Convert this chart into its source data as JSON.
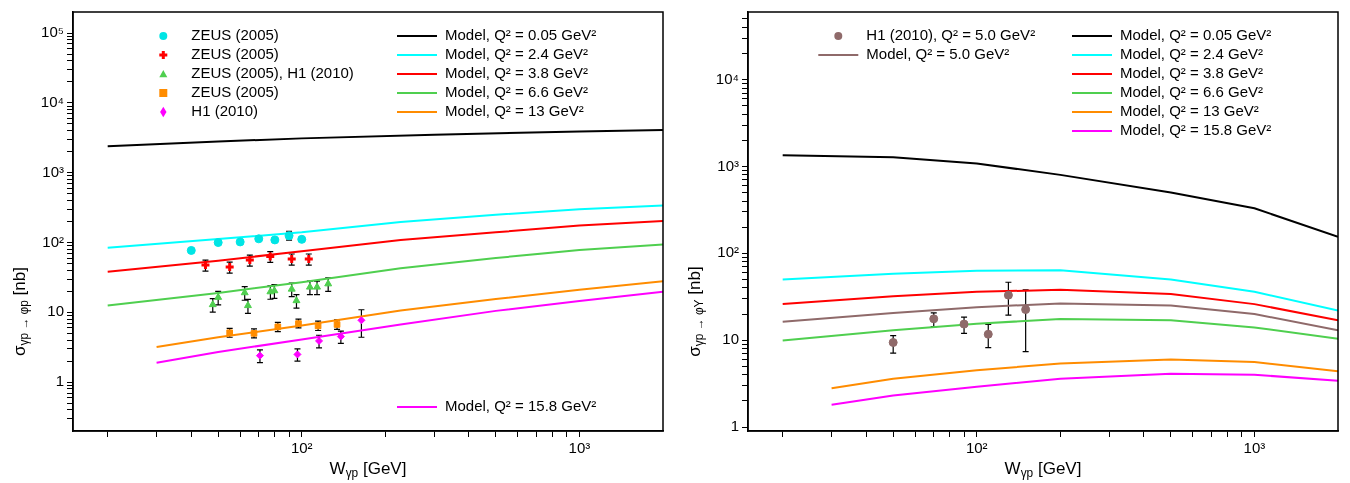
{
  "chart_data": [
    {
      "type": "line",
      "xlabel": "W$_{γp}$ [GeV]",
      "ylabel": "σ$_{γp → φp}$ [nb]",
      "log": "xy",
      "grid": false,
      "legend": "top",
      "xlim": [
        15,
        2000
      ],
      "ylim": [
        0.2,
        200000
      ],
      "xticks": [
        {
          "value": 20,
          "label": null
        },
        {
          "value": 30,
          "label": null
        },
        {
          "value": 40,
          "label": null
        },
        {
          "value": 50,
          "label": null
        },
        {
          "value": 60,
          "label": null
        },
        {
          "value": 70,
          "label": null
        },
        {
          "value": 80,
          "label": null
        },
        {
          "value": 90,
          "label": null
        },
        {
          "value": 100,
          "label": "10²"
        },
        {
          "value": 200,
          "label": null
        },
        {
          "value": 300,
          "label": null
        },
        {
          "value": 400,
          "label": null
        },
        {
          "value": 500,
          "label": null
        },
        {
          "value": 600,
          "label": null
        },
        {
          "value": 700,
          "label": null
        },
        {
          "value": 800,
          "label": null
        },
        {
          "value": 900,
          "label": null
        },
        {
          "value": 1000,
          "label": "10³"
        }
      ],
      "yticks": [
        {
          "value": 0.3,
          "label": null
        },
        {
          "value": 0.4,
          "label": null
        },
        {
          "value": 0.5,
          "label": null
        },
        {
          "value": 0.6,
          "label": null
        },
        {
          "value": 0.7,
          "label": null
        },
        {
          "value": 0.8,
          "label": null
        },
        {
          "value": 0.9,
          "label": null
        },
        {
          "value": 1,
          "label": "1"
        },
        {
          "value": 2,
          "label": null
        },
        {
          "value": 3,
          "label": null
        },
        {
          "value": 4,
          "label": null
        },
        {
          "value": 5,
          "label": null
        },
        {
          "value": 6,
          "label": null
        },
        {
          "value": 7,
          "label": null
        },
        {
          "value": 8,
          "label": null
        },
        {
          "value": 9,
          "label": null
        },
        {
          "value": 10,
          "label": "10"
        },
        {
          "value": 20,
          "label": null
        },
        {
          "value": 30,
          "label": null
        },
        {
          "value": 40,
          "label": null
        },
        {
          "value": 50,
          "label": null
        },
        {
          "value": 60,
          "label": null
        },
        {
          "value": 70,
          "label": null
        },
        {
          "value": 80,
          "label": null
        },
        {
          "value": 90,
          "label": null
        },
        {
          "value": 100,
          "label": "10²"
        },
        {
          "value": 200,
          "label": null
        },
        {
          "value": 300,
          "label": null
        },
        {
          "value": 400,
          "label": null
        },
        {
          "value": 500,
          "label": null
        },
        {
          "value": 600,
          "label": null
        },
        {
          "value": 700,
          "label": null
        },
        {
          "value": 800,
          "label": null
        },
        {
          "value": 900,
          "label": null
        },
        {
          "value": 1000,
          "label": "10³"
        },
        {
          "value": 2000,
          "label": null
        },
        {
          "value": 3000,
          "label": null
        },
        {
          "value": 4000,
          "label": null
        },
        {
          "value": 5000,
          "label": null
        },
        {
          "value": 6000,
          "label": null
        },
        {
          "value": 7000,
          "label": null
        },
        {
          "value": 8000,
          "label": null
        },
        {
          "value": 9000,
          "label": null
        },
        {
          "value": 10000,
          "label": "10⁴"
        },
        {
          "value": 20000,
          "label": null
        },
        {
          "value": 30000,
          "label": null
        },
        {
          "value": 40000,
          "label": null
        },
        {
          "value": 50000,
          "label": null
        },
        {
          "value": 60000,
          "label": null
        },
        {
          "value": 70000,
          "label": null
        },
        {
          "value": 80000,
          "label": null
        },
        {
          "value": 90000,
          "label": null
        },
        {
          "value": 100000,
          "label": "10⁵"
        }
      ],
      "series": [
        {
          "name": "ZEUS (2005)",
          "type": "scatter",
          "marker": "circle",
          "color": "#00e5e5",
          "x": [
            40,
            50,
            60,
            70,
            80,
            90,
            100
          ],
          "values": [
            77,
            100,
            102,
            113,
            109,
            125,
            111
          ],
          "errors": [
            null,
            null,
            null,
            null,
            null,
            [
              108,
              145
            ],
            null
          ]
        },
        {
          "name": "ZEUS (2005)",
          "type": "scatter",
          "marker": "cross",
          "color": "#ff0000",
          "x": [
            45,
            55,
            65,
            77,
            92,
            106
          ],
          "values": [
            47.5,
            44.5,
            56,
            63,
            58,
            58
          ],
          "errors": [
            8.5,
            8,
            10,
            11,
            10.5,
            10.5
          ]
        },
        {
          "name": "ZEUS (2005), H1 (2010)",
          "type": "scatter",
          "marker": "triangle",
          "color": "#4fcf4f",
          "x": [
            47.8,
            50,
            62.3,
            64,
            77.1,
            79.7,
            92,
            95.7,
            107,
            113.5,
            124.5
          ],
          "values": [
            12.9,
            16.4,
            19.1,
            12.5,
            19.7,
            20.4,
            21.5,
            14.7,
            23,
            23,
            25.6
          ],
          "errors": [
            2.8,
            3.6,
            4.2,
            2.8,
            4.3,
            4.5,
            4.7,
            3.2,
            5,
            5,
            5.6
          ]
        },
        {
          "name": "ZEUS (2005)",
          "type": "scatter",
          "marker": "square",
          "color": "#ff8c00",
          "x": [
            55,
            67.3,
            82,
            97.3,
            114.5,
            134
          ],
          "values": [
            5.1,
            5,
            6.2,
            6.9,
            6.4,
            6.7
          ],
          "errors": [
            [
              4.4,
              5.9
            ],
            [
              4.3,
              5.8
            ],
            [
              5.3,
              7.2
            ],
            [
              6,
              8
            ],
            [
              5.5,
              7.5
            ],
            [
              5.7,
              7.8
            ]
          ]
        },
        {
          "name": "H1 (2010)",
          "type": "scatter",
          "marker": "diamond",
          "color": "#ff00ff",
          "x": [
            70.7,
            96.5,
            115.4,
            138.3,
            164
          ],
          "values": [
            2.4,
            2.5,
            3.9,
            4.5,
            7.7
          ],
          "errors": [
            0.5,
            0.5,
            0.8,
            0.9,
            [
              4.4,
              10.9
            ]
          ]
        },
        {
          "name": "Model, Q² = 0.05 GeV²",
          "type": "line",
          "color": "#000000",
          "x": [
            20,
            50,
            100,
            300,
            1000,
            2000
          ],
          "values": [
            2400,
            2800,
            3100,
            3500,
            3900,
            4100
          ]
        },
        {
          "name": "Model, Q² = 2.4 GeV²",
          "type": "line",
          "color": "#00ffff",
          "x": [
            20,
            50,
            100,
            227,
            500,
            1000,
            2000
          ],
          "values": [
            84,
            112,
            140,
            197,
            250,
            300,
            340
          ]
        },
        {
          "name": "Model, Q² = 3.8 GeV²",
          "type": "line",
          "color": "#ff0000",
          "x": [
            20,
            50,
            100,
            227,
            500,
            1000,
            2000
          ],
          "values": [
            38,
            55,
            75,
            109,
            140,
            175,
            204
          ]
        },
        {
          "name": "Model, Q² = 6.6 GeV²",
          "type": "line",
          "color": "#4fcf4f",
          "x": [
            20,
            50,
            100,
            227,
            500,
            1000,
            2000
          ],
          "values": [
            12.5,
            19,
            27,
            42.7,
            60,
            78,
            94
          ]
        },
        {
          "name": "Model, Q² = 13 GeV²",
          "type": "line",
          "color": "#ff8c00",
          "x": [
            30,
            50,
            100,
            227,
            500,
            1000,
            2000
          ],
          "values": [
            3.2,
            4.4,
            6.5,
            10.6,
            15.5,
            21,
            28
          ]
        },
        {
          "name": "Model, Q² = 15.8 GeV²",
          "type": "line",
          "color": "#ff00ff",
          "x": [
            30,
            50,
            100,
            227,
            500,
            1000,
            2000
          ],
          "values": [
            1.9,
            2.7,
            4.1,
            6.7,
            10.5,
            14.5,
            19.7
          ]
        }
      ]
    },
    {
      "type": "line",
      "xlabel": "W$_{γp}$ [GeV]",
      "ylabel": "σ$_{γp → φY}$ [nb]",
      "log": "xy",
      "grid": false,
      "legend": "top",
      "xlim": [
        15,
        2000
      ],
      "ylim": [
        0.9,
        60000
      ],
      "xticks": [
        {
          "value": 20,
          "label": null
        },
        {
          "value": 30,
          "label": null
        },
        {
          "value": 40,
          "label": null
        },
        {
          "value": 50,
          "label": null
        },
        {
          "value": 60,
          "label": null
        },
        {
          "value": 70,
          "label": null
        },
        {
          "value": 80,
          "label": null
        },
        {
          "value": 90,
          "label": null
        },
        {
          "value": 100,
          "label": "10²"
        },
        {
          "value": 200,
          "label": null
        },
        {
          "value": 300,
          "label": null
        },
        {
          "value": 400,
          "label": null
        },
        {
          "value": 500,
          "label": null
        },
        {
          "value": 600,
          "label": null
        },
        {
          "value": 700,
          "label": null
        },
        {
          "value": 800,
          "label": null
        },
        {
          "value": 900,
          "label": null
        },
        {
          "value": 1000,
          "label": "10³"
        }
      ],
      "yticks": [
        {
          "value": 1,
          "label": "1"
        },
        {
          "value": 2,
          "label": null
        },
        {
          "value": 3,
          "label": null
        },
        {
          "value": 4,
          "label": null
        },
        {
          "value": 5,
          "label": null
        },
        {
          "value": 6,
          "label": null
        },
        {
          "value": 7,
          "label": null
        },
        {
          "value": 8,
          "label": null
        },
        {
          "value": 9,
          "label": null
        },
        {
          "value": 10,
          "label": "10"
        },
        {
          "value": 20,
          "label": null
        },
        {
          "value": 30,
          "label": null
        },
        {
          "value": 40,
          "label": null
        },
        {
          "value": 50,
          "label": null
        },
        {
          "value": 60,
          "label": null
        },
        {
          "value": 70,
          "label": null
        },
        {
          "value": 80,
          "label": null
        },
        {
          "value": 90,
          "label": null
        },
        {
          "value": 100,
          "label": "10²"
        },
        {
          "value": 200,
          "label": null
        },
        {
          "value": 300,
          "label": null
        },
        {
          "value": 400,
          "label": null
        },
        {
          "value": 500,
          "label": null
        },
        {
          "value": 600,
          "label": null
        },
        {
          "value": 700,
          "label": null
        },
        {
          "value": 800,
          "label": null
        },
        {
          "value": 900,
          "label": null
        },
        {
          "value": 1000,
          "label": "10³"
        },
        {
          "value": 2000,
          "label": null
        },
        {
          "value": 3000,
          "label": null
        },
        {
          "value": 4000,
          "label": null
        },
        {
          "value": 5000,
          "label": null
        },
        {
          "value": 6000,
          "label": null
        },
        {
          "value": 7000,
          "label": null
        },
        {
          "value": 8000,
          "label": null
        },
        {
          "value": 9000,
          "label": null
        },
        {
          "value": 10000,
          "label": "10⁴"
        },
        {
          "value": 20000,
          "label": null
        },
        {
          "value": 30000,
          "label": null
        },
        {
          "value": 40000,
          "label": null
        },
        {
          "value": 50000,
          "label": null
        }
      ],
      "series": [
        {
          "name": "H1 (2010), Q² = 5.0 GeV²",
          "type": "scatter",
          "marker": "circle",
          "color": "#8f6a6a",
          "x": [
            50,
            70,
            90,
            110,
            130,
            150
          ],
          "values": [
            9.4,
            17.6,
            15.3,
            11.7,
            33,
            22.5
          ],
          "errors": [
            [
              7.1,
              11.3
            ],
            [
              14.3,
              20.6
            ],
            [
              12,
              18.4
            ],
            [
              8.2,
              15.2
            ],
            [
              19.4,
              46.4
            ],
            [
              7.4,
              38
            ]
          ]
        },
        {
          "name": "Model, Q² = 0.05 GeV²",
          "type": "line",
          "color": "#000000",
          "x": [
            20,
            50,
            100,
            200,
            500,
            1000,
            2000
          ],
          "values": [
            1350,
            1280,
            1080,
            800,
            500,
            330,
            155
          ]
        },
        {
          "name": "Model, Q² = 2.4 GeV²",
          "type": "line",
          "color": "#00ffff",
          "x": [
            20,
            50,
            100,
            200,
            500,
            1000,
            2000
          ],
          "values": [
            50,
            58,
            63,
            64,
            50,
            36,
            22
          ]
        },
        {
          "name": "Model, Q² = 3.8 GeV²",
          "type": "line",
          "color": "#ff0000",
          "x": [
            20,
            50,
            100,
            200,
            500,
            1000,
            2000
          ],
          "values": [
            26,
            32,
            36,
            38,
            34,
            26,
            17
          ]
        },
        {
          "name": "Model, Q² = 6.6 GeV²",
          "type": "line",
          "color": "#4fcf4f",
          "x": [
            20,
            50,
            100,
            200,
            500,
            1000,
            2000
          ],
          "values": [
            9.9,
            13,
            15.5,
            17.5,
            17,
            14,
            10.4
          ]
        },
        {
          "name": "Model, Q² = 13 GeV²",
          "type": "line",
          "color": "#ff8c00",
          "x": [
            30,
            50,
            100,
            200,
            500,
            1000,
            2000
          ],
          "values": [
            2.8,
            3.6,
            4.5,
            5.4,
            6,
            5.6,
            4.4
          ]
        },
        {
          "name": "Model, Q² = 15.8 GeV²",
          "type": "line",
          "color": "#ff00ff",
          "x": [
            30,
            50,
            100,
            200,
            500,
            1000,
            2000
          ],
          "values": [
            1.8,
            2.3,
            2.9,
            3.6,
            4.1,
            4,
            3.4
          ]
        },
        {
          "name": "Model, Q² = 5.0 GeV²",
          "type": "line",
          "color": "#8f6a6a",
          "x": [
            20,
            50,
            100,
            200,
            500,
            1000,
            2000
          ],
          "values": [
            16.3,
            20.5,
            24,
            26.5,
            25,
            20,
            13
          ]
        }
      ]
    }
  ]
}
